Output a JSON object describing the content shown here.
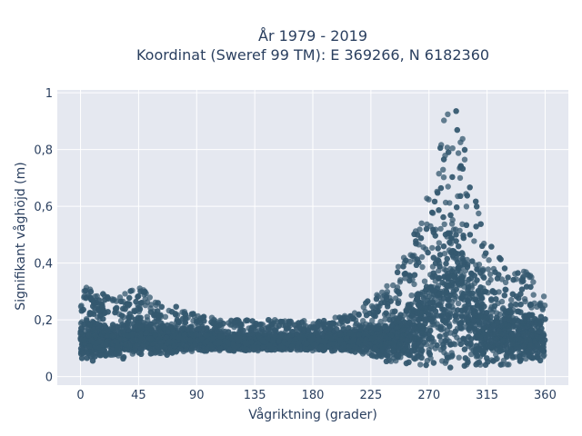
{
  "chart_data": {
    "type": "scatter",
    "title_line1": "År 1979 - 2019",
    "title_line2": "Koordinat (Sweref 99 TM): E 369266, N 6182360",
    "xlabel": "Vågriktning (grader)",
    "ylabel": "Signifikant våghöjd (m)",
    "xlim": [
      -18,
      378
    ],
    "ylim": [
      -0.03,
      1.01
    ],
    "xticks": [
      0,
      45,
      90,
      135,
      180,
      225,
      270,
      315,
      360
    ],
    "xtick_labels": [
      "0",
      "45",
      "90",
      "135",
      "180",
      "225",
      "270",
      "315",
      "360"
    ],
    "yticks": [
      0,
      0.2,
      0.4,
      0.6,
      0.8,
      1
    ],
    "ytick_labels": [
      "0",
      "0,2",
      "0,4",
      "0,6",
      "0,8",
      "1"
    ],
    "grid": true,
    "marker_color": "#34586f",
    "background_color": "#e5e8f0",
    "envelope": {
      "x": [
        0,
        10,
        20,
        30,
        45,
        60,
        75,
        90,
        110,
        135,
        160,
        180,
        200,
        215,
        225,
        235,
        245,
        255,
        262,
        270,
        275,
        280,
        285,
        290,
        295,
        300,
        305,
        310,
        315,
        320,
        330,
        340,
        350,
        360
      ],
      "y_min": [
        0.06,
        0.05,
        0.06,
        0.06,
        0.07,
        0.07,
        0.08,
        0.09,
        0.09,
        0.09,
        0.09,
        0.09,
        0.09,
        0.08,
        0.07,
        0.05,
        0.04,
        0.04,
        0.03,
        0.03,
        0.03,
        0.03,
        0.02,
        0.03,
        0.03,
        0.03,
        0.03,
        0.03,
        0.04,
        0.04,
        0.04,
        0.04,
        0.05,
        0.06
      ],
      "y_max": [
        0.33,
        0.3,
        0.29,
        0.28,
        0.32,
        0.27,
        0.25,
        0.22,
        0.2,
        0.2,
        0.2,
        0.2,
        0.21,
        0.24,
        0.28,
        0.31,
        0.38,
        0.46,
        0.55,
        0.66,
        0.77,
        0.88,
        0.97,
        0.96,
        0.9,
        0.78,
        0.65,
        0.55,
        0.5,
        0.45,
        0.4,
        0.38,
        0.36,
        0.29
      ]
    }
  }
}
